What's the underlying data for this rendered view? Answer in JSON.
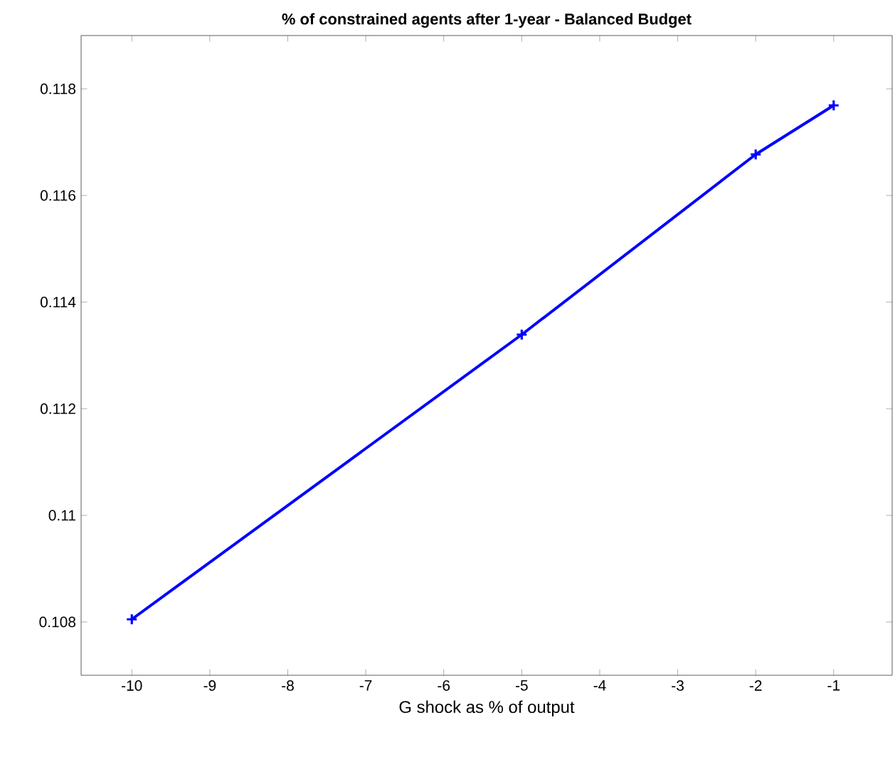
{
  "chart_data": {
    "type": "line",
    "title": "% of constrained agents after 1-year - Balanced Budget",
    "xlabel": "G shock as % of output",
    "x": [
      -10,
      -5,
      -2,
      -1
    ],
    "series": [
      {
        "color": "#0000ff",
        "values": [
          0.10805,
          0.11339,
          0.11677,
          0.11769
        ]
      }
    ],
    "xlim": [
      -10.65,
      -0.25
    ],
    "ylim": [
      0.107,
      0.119
    ],
    "xticks": [
      -10,
      -9,
      -8,
      -7,
      -6,
      -5,
      -4,
      -3,
      -2,
      -1
    ],
    "yticks": [
      0.108,
      0.11,
      0.112,
      0.114,
      0.116,
      0.118
    ],
    "grid": false,
    "marker": "cross",
    "line_style": "solid"
  }
}
